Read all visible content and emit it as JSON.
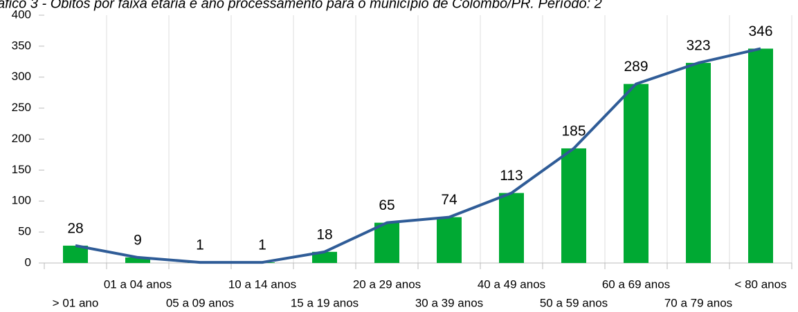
{
  "chart_data": {
    "type": "bar",
    "title": "áfico 3 - Óbitos por faixa etária e ano processamento para o município de Colombo/PR. Período: 2",
    "categories": [
      "> 01 ano",
      "01 a 04 anos",
      "05 a 09 anos",
      "10 a 14 anos",
      "15 a 19 anos",
      "20 a 29 anos",
      "30 a 39 anos",
      "40 a 49 anos",
      "50 a 59 anos",
      "60 a 69 anos",
      "70 a 79 anos",
      "< 80 anos"
    ],
    "series": [
      {
        "type": "bar",
        "color": "#00a933",
        "values": [
          28,
          9,
          1,
          1,
          18,
          65,
          74,
          113,
          185,
          289,
          323,
          346
        ]
      },
      {
        "type": "line",
        "color": "#2f5c97",
        "values": [
          28,
          9,
          1,
          1,
          18,
          65,
          74,
          113,
          185,
          289,
          323,
          346
        ]
      }
    ],
    "ylim": [
      0,
      400
    ],
    "yticks": [
      0,
      50,
      100,
      150,
      200,
      250,
      300,
      350,
      400
    ],
    "grid": true
  }
}
